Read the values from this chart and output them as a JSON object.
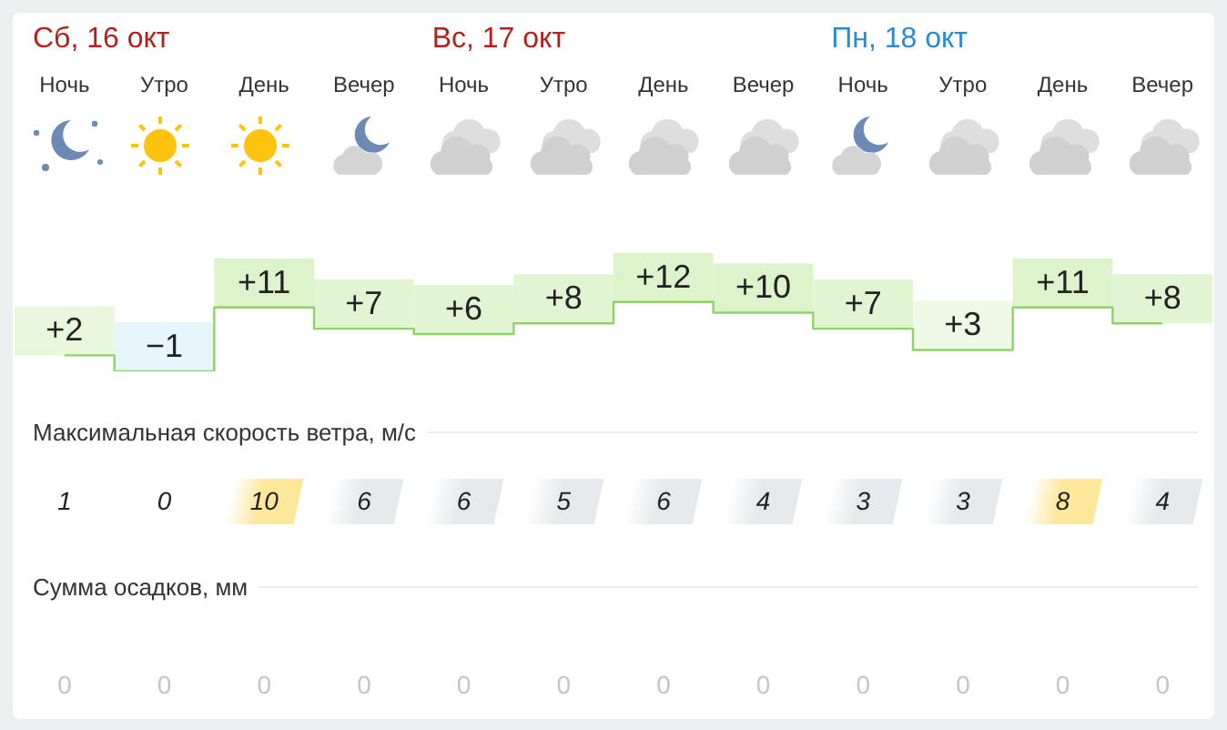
{
  "chart_data": [
    {
      "type": "step",
      "annotations": [
        "Сб, 16 окт",
        "Вс, 17 окт",
        "Пн, 18 окт"
      ],
      "categories": [
        "Ночь",
        "Утро",
        "День",
        "Вечер",
        "Ночь",
        "Утро",
        "День",
        "Вечер",
        "Ночь",
        "Утро",
        "День",
        "Вечер"
      ],
      "series": [
        {
          "color": "#8fd16a",
          "values": [
            2,
            -1,
            11,
            7,
            6,
            8,
            12,
            10,
            7,
            3,
            11,
            8
          ],
          "value_labels": [
            "+2",
            "−1",
            "+11",
            "+7",
            "+6",
            "+8",
            "+12",
            "+10",
            "+7",
            "+3",
            "+11",
            "+8"
          ],
          "colors": [
            "#e9f8dd",
            "#e6f6fc",
            "#dcf3cb",
            "#e2f5d3",
            "#e2f5d3",
            "#e2f5d3",
            "#dcf3cb",
            "#dcf3cb",
            "#e2f5d3",
            "#eef9e6",
            "#dcf3cb",
            "#e2f5d3"
          ]
        }
      ],
      "marker": "none",
      "grid": false,
      "legend": false,
      "tick_labels": "x"
    },
    {
      "type": "other",
      "title": "Максимальная скорость ветра, м/с",
      "categories": [
        null,
        null,
        null,
        null,
        null,
        null,
        null,
        null,
        null,
        null,
        null,
        null
      ],
      "values": [
        1,
        0,
        10,
        6,
        6,
        5,
        6,
        4,
        3,
        3,
        8,
        4
      ],
      "colors": [
        "#ffffff",
        "#ffffff",
        "#fde79b",
        "#e6e8eb",
        "#e6e8eb",
        "#e6e8eb",
        "#e6e8eb",
        "#e6e8eb",
        "#e6e8eb",
        "#e6e8eb",
        "#fde79b",
        "#e6e8eb"
      ],
      "data_labels": true
    },
    {
      "type": "other",
      "title": "Сумма осадков, мм",
      "categories": [
        null,
        null,
        null,
        null,
        null,
        null,
        null,
        null,
        null,
        null,
        null,
        null
      ],
      "values": [
        0,
        0,
        0,
        0,
        0,
        0,
        0,
        0,
        0,
        0,
        0,
        0
      ],
      "data_labels": true
    }
  ]
}
